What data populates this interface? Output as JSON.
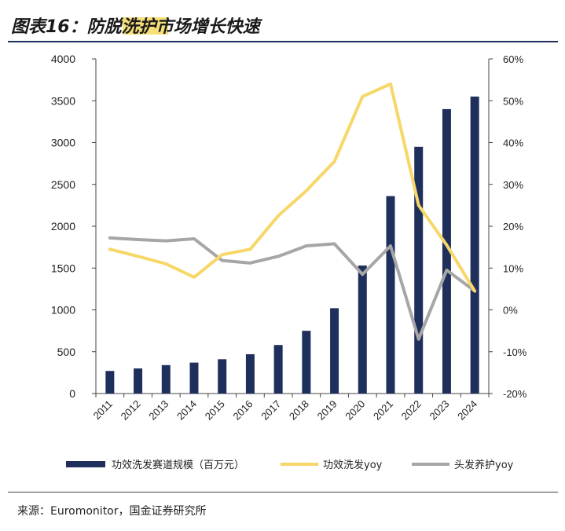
{
  "header": {
    "title": "图表16：防脱洗护市场增长快速"
  },
  "footer": {
    "source": "来源：Euromonitor，国金证券研究所"
  },
  "colors": {
    "bar": "#1f2f5c",
    "line_yellow": "#f6d768",
    "line_gray": "#a6a6a6",
    "axis": "#444444",
    "title_highlight": "#f6e07a"
  },
  "chart_data": {
    "type": "bar",
    "categories": [
      "2011",
      "2012",
      "2013",
      "2014",
      "2015",
      "2016",
      "2017",
      "2018",
      "2019",
      "2020",
      "2021",
      "2022",
      "2023",
      "2024"
    ],
    "series": [
      {
        "name": "功效洗发赛道规模（百万元）",
        "type": "bar",
        "axis": "left",
        "values": [
          270,
          300,
          340,
          370,
          410,
          470,
          580,
          750,
          1020,
          1530,
          2360,
          2950,
          3400,
          3550
        ]
      },
      {
        "name": "功效洗发yoy",
        "type": "line",
        "axis": "right",
        "values": [
          14.5,
          12.8,
          11,
          7.8,
          13.2,
          14.5,
          22.5,
          28.5,
          35.5,
          51,
          54,
          25,
          15.5,
          4.5
        ]
      },
      {
        "name": "头发养护yoy",
        "type": "line",
        "axis": "right",
        "values": [
          17.2,
          16.8,
          16.5,
          17,
          11.8,
          11.2,
          12.8,
          15.3,
          15.8,
          8.5,
          15.3,
          -7,
          9.5,
          4.5
        ]
      }
    ],
    "left_axis": {
      "ylim": [
        0,
        4000
      ],
      "ticks": [
        "0",
        "500",
        "1000",
        "1500",
        "2000",
        "2500",
        "3000",
        "3500",
        "4000"
      ]
    },
    "right_axis": {
      "ylim": [
        -20,
        60
      ],
      "ticks": [
        "-20%",
        "-10%",
        "0%",
        "10%",
        "20%",
        "30%",
        "40%",
        "50%",
        "60%"
      ]
    },
    "legend_position": "bottom",
    "grid": false
  }
}
